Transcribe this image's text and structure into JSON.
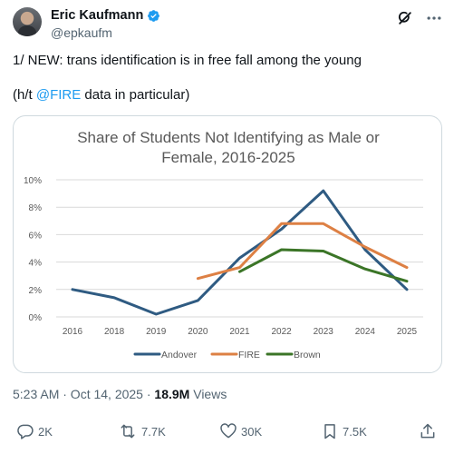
{
  "author": {
    "name": "Eric Kaufmann",
    "handle": "@epkaufm"
  },
  "tweet": {
    "line1": "1/ NEW: trans identification is in free fall among the young",
    "line2_prefix": "(h/t ",
    "mention": "@FIRE",
    "line2_suffix": " data in particular)"
  },
  "meta": {
    "time": "5:23 AM · Oct 14, 2025 · ",
    "views_count": "18.9M",
    "views_label": " Views"
  },
  "actions": {
    "replies": "2K",
    "reposts": "7.7K",
    "likes": "30K",
    "bookmarks": "7.5K"
  },
  "colors": {
    "accent": "#1d9bf0",
    "andover": "#2f5b82",
    "fire": "#dd8044",
    "brown": "#3b7527"
  },
  "chart_data": {
    "type": "line",
    "title_line1": "Share of Students Not Identifying as Male or",
    "title_line2": "Female, 2016-2025",
    "xlabel": "",
    "ylabel": "",
    "categories": [
      "2016",
      "2018",
      "2019",
      "2020",
      "2021",
      "2022",
      "2023",
      "2024",
      "2025"
    ],
    "yticks": [
      "0%",
      "2%",
      "4%",
      "6%",
      "8%",
      "10%"
    ],
    "ylim": [
      0,
      10
    ],
    "grid": true,
    "legend": "bottom",
    "series": [
      {
        "name": "Andover",
        "color": "#2f5b82",
        "values": [
          2.0,
          1.4,
          0.2,
          1.2,
          4.3,
          6.4,
          9.2,
          4.9,
          2.0
        ]
      },
      {
        "name": "FIRE",
        "color": "#dd8044",
        "values": [
          null,
          null,
          null,
          2.8,
          3.6,
          6.8,
          6.8,
          5.1,
          3.6
        ]
      },
      {
        "name": "Brown",
        "color": "#3b7527",
        "values": [
          null,
          null,
          null,
          null,
          3.3,
          4.9,
          4.8,
          3.5,
          2.6
        ]
      }
    ]
  }
}
